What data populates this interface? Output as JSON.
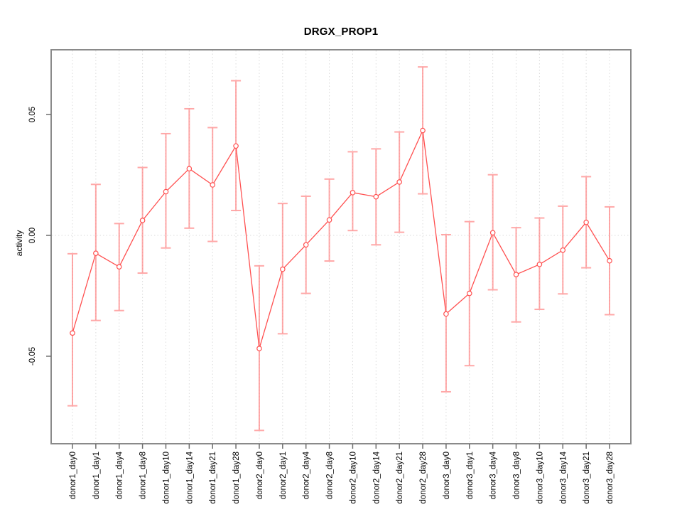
{
  "chart_data": {
    "type": "line",
    "title": "DRGX_PROP1",
    "xlabel": "",
    "ylabel": "activity",
    "legend_position": "none",
    "grid": {
      "vertical_per_category": true,
      "horizontal_zero_line": true
    },
    "ylim": [
      -0.0862,
      0.0768
    ],
    "yticks": [
      {
        "label": "0.05",
        "value": 0.05
      },
      {
        "label": "0.00",
        "value": 0.0
      },
      {
        "label": "-0.05",
        "value": -0.05
      }
    ],
    "categories": [
      "donor1_day0",
      "donor1_day1",
      "donor1_day4",
      "donor1_day8",
      "donor1_day10",
      "donor1_day14",
      "donor1_day21",
      "donor1_day28",
      "donor2_day0",
      "donor2_day1",
      "donor2_day4",
      "donor2_day8",
      "donor2_day10",
      "donor2_day14",
      "donor2_day21",
      "donor2_day28",
      "donor3_day0",
      "donor3_day1",
      "donor3_day4",
      "donor3_day8",
      "donor3_day10",
      "donor3_day14",
      "donor3_day21",
      "donor3_day28"
    ],
    "series": [
      {
        "name": "activity",
        "marker": "open-circle",
        "values": [
          -0.0404,
          -0.0074,
          -0.013,
          0.0062,
          0.0181,
          0.0276,
          0.0209,
          0.037,
          -0.0468,
          -0.014,
          -0.0039,
          0.0064,
          0.0177,
          0.016,
          0.0221,
          0.0434,
          -0.0325,
          -0.024,
          0.0011,
          -0.0162,
          -0.012,
          -0.0061,
          0.0054,
          -0.0105
        ],
        "error_high": [
          -0.0076,
          0.0211,
          0.0049,
          0.0281,
          0.0421,
          0.0524,
          0.0446,
          0.064,
          -0.0126,
          0.0132,
          0.0162,
          0.0233,
          0.0346,
          0.0358,
          0.0428,
          0.0697,
          0.0003,
          0.0057,
          0.0251,
          0.0032,
          0.0072,
          0.0121,
          0.0243,
          0.0118
        ],
        "error_low": [
          -0.0705,
          -0.0352,
          -0.0311,
          -0.0156,
          -0.0052,
          0.003,
          -0.0025,
          0.0103,
          -0.0807,
          -0.0407,
          -0.024,
          -0.0106,
          0.002,
          -0.0039,
          0.0013,
          0.0172,
          -0.0647,
          -0.0539,
          -0.0225,
          -0.0358,
          -0.0306,
          -0.0242,
          -0.0134,
          -0.0328
        ]
      }
    ],
    "styles": {
      "line_color": "#FF5050",
      "error_bar_color": "#FF7474",
      "error_bar_opacity": 0.62,
      "grid_color": "#DBDBDB",
      "border_color": "#8A8A8A",
      "tick_color": "#6E6E6E",
      "text_color": "#000000",
      "background": "#FFFFFF"
    }
  }
}
